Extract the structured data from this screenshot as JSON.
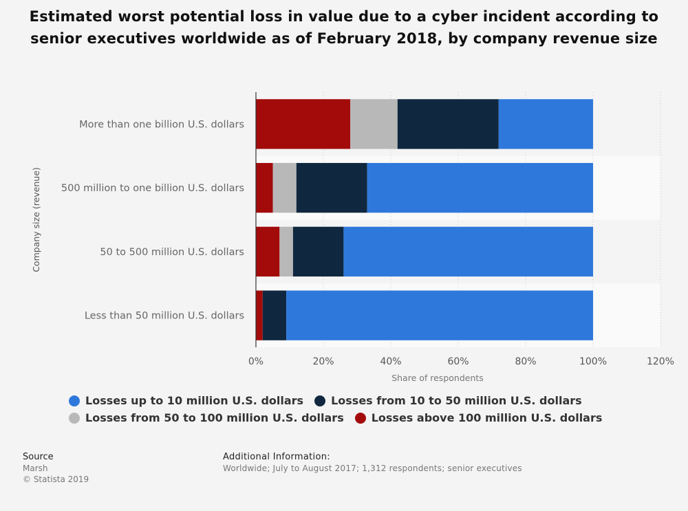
{
  "title": "Estimated worst potential loss in value due to a cyber incident according to senior executives worldwide as of February 2018, by company revenue size",
  "chart_data": {
    "type": "bar",
    "orientation": "horizontal",
    "stacked": true,
    "title": "Estimated worst potential loss in value due to a cyber incident according to senior executives worldwide as of February 2018, by company revenue size",
    "xlabel": "Share of respondents",
    "ylabel": "Company size (revenue)",
    "xlim": [
      0,
      120
    ],
    "x_ticks": [
      "0%",
      "20%",
      "40%",
      "60%",
      "80%",
      "100%",
      "120%"
    ],
    "grid": "vertical dotted",
    "categories": [
      "More than one billion U.S. dollars",
      "500 million to one billion U.S. dollars",
      "50 to 500 million U.S. dollars",
      "Less than 50 million U.S. dollars"
    ],
    "series": [
      {
        "name": "Losses above 100 million U.S. dollars",
        "color": "#a30b0b",
        "values": [
          28,
          5,
          7,
          2
        ]
      },
      {
        "name": "Losses from 50 to 100 million U.S. dollars",
        "color": "#b8b8b8",
        "values": [
          14,
          7,
          4,
          0
        ]
      },
      {
        "name": "Losses from 10 to 50 million U.S. dollars",
        "color": "#10283f",
        "values": [
          30,
          21,
          15,
          7
        ]
      },
      {
        "name": "Losses up to 10 million U.S. dollars",
        "color": "#2f78db",
        "values": [
          28,
          67,
          74,
          91
        ]
      }
    ],
    "legend_order": [
      3,
      2,
      1,
      0
    ],
    "legend_position": "bottom"
  },
  "source": {
    "header": "Source",
    "lines": [
      "Marsh",
      "© Statista 2019"
    ]
  },
  "additional_info": {
    "header": "Additional Information:",
    "text": "Worldwide; July to August 2017; 1,312 respondents; senior executives"
  }
}
